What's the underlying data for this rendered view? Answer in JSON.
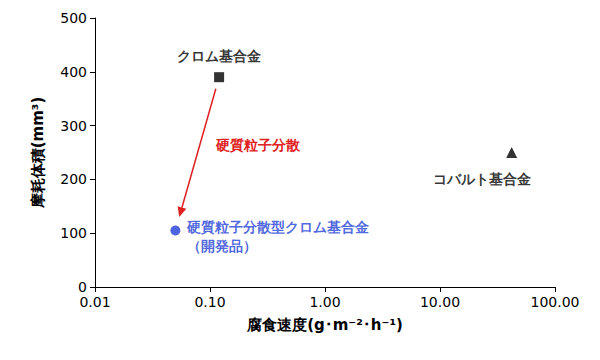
{
  "chart_data": {
    "type": "scatter",
    "series": [
      {
        "name": "クロム基合金",
        "color": "#000000",
        "marker": "square",
        "x": [
          0.12
        ],
        "values": [
          390
        ]
      },
      {
        "name": "コバルト基合金",
        "color": "#000000",
        "marker": "triangle",
        "x": [
          42
        ],
        "values": [
          250
        ]
      },
      {
        "name": "硬質粒子分散型クロム基合金\n（開発品）",
        "color": "#1f3fd6",
        "marker": "circle",
        "x": [
          0.05
        ],
        "values": [
          105
        ]
      }
    ],
    "xlabel": "腐食速度(g･m⁻²･h⁻¹)",
    "ylabel": "摩耗体積(mm³)",
    "xlim": [
      0.01,
      100
    ],
    "xticks": [
      0.01,
      {
        "value": 0.1,
        "label": "0.10"
      },
      {
        "value": 1,
        "label": "1.00"
      },
      {
        "value": 10,
        "label": "10.00"
      },
      {
        "value": 100,
        "label": "100.00"
      }
    ],
    "ylim": [
      0,
      500
    ],
    "yticks": [
      0,
      100,
      200,
      300,
      400,
      500
    ],
    "log": "x",
    "grid": false,
    "annotations": [
      {
        "text": "硬質粒子分散",
        "color": "#e02020",
        "from": "クロム基合金",
        "to": "硬質粒子分散型クロム基合金\n（開発品）"
      }
    ]
  }
}
